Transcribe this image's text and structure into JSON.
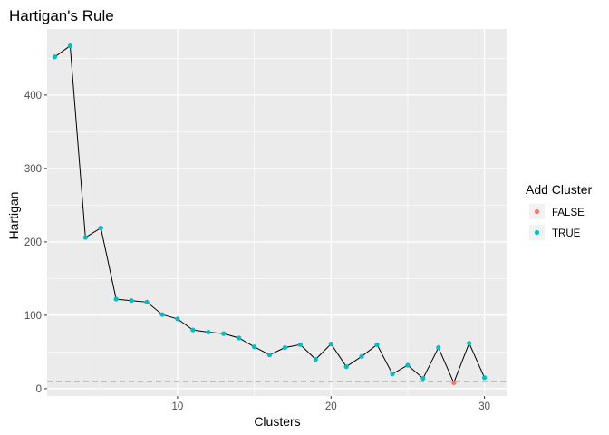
{
  "chart_data": {
    "type": "line",
    "title": "Hartigan's Rule",
    "xlabel": "Clusters",
    "ylabel": "Hartigan",
    "xlim": [
      1.5,
      31.5
    ],
    "ylim": [
      -10,
      490
    ],
    "xticks": [
      10,
      20,
      30
    ],
    "yticks": [
      0,
      100,
      200,
      300,
      400
    ],
    "x": [
      2,
      3,
      4,
      5,
      6,
      7,
      8,
      9,
      10,
      11,
      12,
      13,
      14,
      15,
      16,
      17,
      18,
      19,
      20,
      21,
      22,
      23,
      24,
      25,
      26,
      27,
      28,
      29,
      30
    ],
    "values": [
      452,
      467,
      206,
      219,
      122,
      120,
      118,
      101,
      95,
      80,
      77,
      75,
      69,
      57,
      46,
      56,
      60,
      40,
      61,
      30,
      44,
      60,
      20,
      32,
      14,
      56,
      8,
      62,
      15
    ],
    "add_cluster": [
      true,
      true,
      true,
      true,
      true,
      true,
      true,
      true,
      true,
      true,
      true,
      true,
      true,
      true,
      true,
      true,
      true,
      true,
      true,
      true,
      true,
      true,
      true,
      true,
      true,
      true,
      false,
      true,
      true
    ],
    "threshold": 10,
    "legend": {
      "title": "Add Cluster",
      "position": "right",
      "entries": [
        {
          "label": "FALSE",
          "color": "#F8766D"
        },
        {
          "label": "TRUE",
          "color": "#00BFC4"
        }
      ]
    },
    "colors": {
      "panel": "#EBEBEB",
      "grid": "#FFFFFF",
      "line": "#000000",
      "threshold": "#BEBEBE"
    }
  }
}
